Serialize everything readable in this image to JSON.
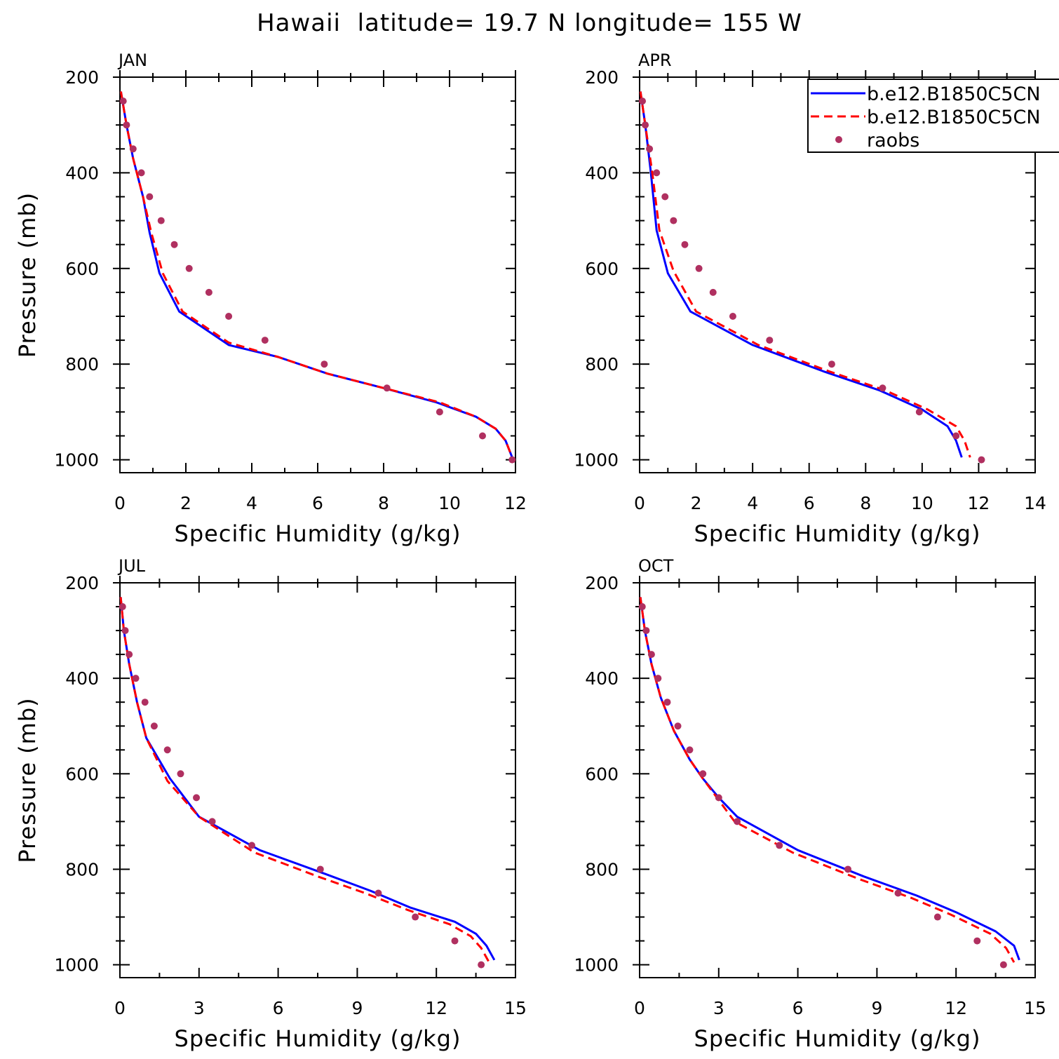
{
  "title": "Hawaii  latitude= 19.7 N longitude= 155 W",
  "colors": {
    "blue_series": "#0000ff",
    "red_series": "#ff0000",
    "raobs": "#b03060"
  },
  "legend": {
    "placement": "top-right of APR panel",
    "entries": [
      "b.e12.B1850C5CN",
      "b.e12.B1850C5CN",
      "raobs"
    ]
  },
  "chart_data": [
    {
      "panel": "JAN",
      "type": "line",
      "xlabel": "Specific Humidity (g/kg)",
      "ylabel": "Pressure (mb)",
      "xlim": [
        0,
        12
      ],
      "ylim": [
        1000,
        200
      ],
      "xticks": [
        0,
        2,
        4,
        6,
        8,
        10,
        12
      ],
      "yticks": [
        200,
        400,
        600,
        800,
        1000
      ],
      "series": [
        {
          "legend": "b.e12.B1850C5CN",
          "style": "solid",
          "x": [
            0.03,
            0.2,
            0.4,
            0.7,
            0.9,
            1.2,
            1.8,
            3.3,
            4.8,
            6.3,
            8.0,
            9.6,
            10.8,
            11.4,
            11.7,
            11.9
          ],
          "y": [
            230,
            300,
            370,
            450,
            525,
            610,
            690,
            760,
            785,
            820,
            850,
            880,
            910,
            935,
            960,
            995
          ]
        },
        {
          "legend": "b.e12.B1850C5CN",
          "style": "dashed",
          "x": [
            0.03,
            0.2,
            0.4,
            0.7,
            0.95,
            1.3,
            1.9,
            3.3,
            4.8,
            6.3,
            8.0,
            9.7,
            10.8,
            11.4,
            11.7,
            11.9
          ],
          "y": [
            230,
            300,
            370,
            450,
            525,
            610,
            690,
            755,
            785,
            820,
            850,
            880,
            910,
            935,
            960,
            995
          ]
        },
        {
          "legend": "raobs",
          "style": "markers",
          "x": [
            0.1,
            0.2,
            0.4,
            0.65,
            0.9,
            1.25,
            1.65,
            2.1,
            2.7,
            3.3,
            4.4,
            6.2,
            8.1,
            9.7,
            11.0,
            11.9
          ],
          "y": [
            250,
            300,
            350,
            400,
            450,
            500,
            550,
            600,
            650,
            700,
            750,
            800,
            850,
            900,
            950,
            1000
          ]
        }
      ]
    },
    {
      "panel": "APR",
      "type": "line",
      "xlabel": "Specific Humidity (g/kg)",
      "ylabel": "",
      "xlim": [
        0,
        14
      ],
      "ylim": [
        1000,
        200
      ],
      "xticks": [
        0,
        2,
        4,
        6,
        8,
        10,
        12,
        14
      ],
      "yticks": [
        200,
        400,
        600,
        800,
        1000
      ],
      "series": [
        {
          "legend": "b.e12.B1850C5CN",
          "style": "solid",
          "x": [
            0.03,
            0.2,
            0.4,
            0.6,
            1.0,
            1.8,
            4.0,
            6.5,
            8.5,
            10.0,
            10.9,
            11.2,
            11.4
          ],
          "y": [
            230,
            300,
            400,
            520,
            610,
            690,
            760,
            815,
            855,
            895,
            930,
            960,
            995
          ]
        },
        {
          "legend": "b.e12.B1850C5CN",
          "style": "dashed",
          "x": [
            0.03,
            0.2,
            0.45,
            0.7,
            1.2,
            2.0,
            4.2,
            6.7,
            8.7,
            10.2,
            11.2,
            11.5,
            11.7
          ],
          "y": [
            230,
            300,
            400,
            520,
            605,
            690,
            760,
            815,
            855,
            895,
            930,
            960,
            995
          ]
        },
        {
          "legend": "raobs",
          "style": "markers",
          "x": [
            0.1,
            0.2,
            0.35,
            0.6,
            0.9,
            1.2,
            1.6,
            2.1,
            2.6,
            3.3,
            4.6,
            6.8,
            8.6,
            9.9,
            11.2,
            12.1
          ],
          "y": [
            250,
            300,
            350,
            400,
            450,
            500,
            550,
            600,
            650,
            700,
            750,
            800,
            850,
            900,
            950,
            1000
          ]
        }
      ]
    },
    {
      "panel": "JUL",
      "type": "line",
      "xlabel": "Specific Humidity (g/kg)",
      "ylabel": "Pressure (mb)",
      "xlim": [
        0,
        15
      ],
      "ylim": [
        1000,
        200
      ],
      "xticks": [
        0,
        3,
        6,
        9,
        12,
        15
      ],
      "yticks": [
        200,
        400,
        600,
        800,
        1000
      ],
      "series": [
        {
          "legend": "b.e12.B1850C5CN",
          "style": "solid",
          "x": [
            0.03,
            0.15,
            0.35,
            0.65,
            1.0,
            1.9,
            3.0,
            5.3,
            7.8,
            9.5,
            11.0,
            12.7,
            13.5,
            13.9,
            14.2
          ],
          "y": [
            230,
            300,
            370,
            450,
            525,
            610,
            690,
            760,
            810,
            845,
            880,
            910,
            935,
            960,
            990
          ]
        },
        {
          "legend": "b.e12.B1850C5CN",
          "style": "dashed",
          "x": [
            0.03,
            0.15,
            0.35,
            0.65,
            1.0,
            1.8,
            3.0,
            5.1,
            7.5,
            9.3,
            10.9,
            12.5,
            13.3,
            13.7,
            14.0
          ],
          "y": [
            230,
            300,
            370,
            450,
            525,
            615,
            690,
            765,
            815,
            850,
            885,
            915,
            940,
            965,
            995
          ]
        },
        {
          "legend": "raobs",
          "style": "markers",
          "x": [
            0.1,
            0.2,
            0.35,
            0.6,
            0.95,
            1.3,
            1.8,
            2.3,
            2.9,
            3.5,
            5.0,
            7.6,
            9.8,
            11.2,
            12.7,
            13.7
          ],
          "y": [
            250,
            300,
            350,
            400,
            450,
            500,
            550,
            600,
            650,
            700,
            750,
            800,
            850,
            900,
            950,
            1000
          ]
        }
      ]
    },
    {
      "panel": "OCT",
      "type": "line",
      "xlabel": "Specific Humidity (g/kg)",
      "ylabel": "",
      "xlim": [
        0,
        15
      ],
      "ylim": [
        1000,
        200
      ],
      "xticks": [
        0,
        3,
        6,
        9,
        12,
        15
      ],
      "yticks": [
        200,
        400,
        600,
        800,
        1000
      ],
      "series": [
        {
          "legend": "b.e12.B1850C5CN",
          "style": "solid",
          "x": [
            0.03,
            0.2,
            0.45,
            0.8,
            1.3,
            1.9,
            2.4,
            3.0,
            3.7,
            6.0,
            8.5,
            10.5,
            12.0,
            13.5,
            14.2,
            14.4
          ],
          "y": [
            230,
            300,
            370,
            440,
            510,
            570,
            610,
            650,
            690,
            760,
            815,
            855,
            890,
            930,
            960,
            990
          ]
        },
        {
          "legend": "b.e12.B1850C5CN",
          "style": "dashed",
          "x": [
            0.03,
            0.2,
            0.45,
            0.8,
            1.3,
            1.9,
            2.4,
            3.0,
            3.6,
            5.8,
            8.3,
            10.3,
            11.8,
            13.3,
            13.9,
            14.2
          ],
          "y": [
            230,
            300,
            370,
            440,
            510,
            570,
            610,
            655,
            700,
            765,
            820,
            860,
            895,
            935,
            965,
            995
          ]
        },
        {
          "legend": "raobs",
          "style": "markers",
          "x": [
            0.1,
            0.25,
            0.45,
            0.7,
            1.05,
            1.45,
            1.9,
            2.4,
            3.0,
            3.7,
            5.3,
            7.9,
            9.8,
            11.3,
            12.8,
            13.8
          ],
          "y": [
            250,
            300,
            350,
            400,
            450,
            500,
            550,
            600,
            650,
            700,
            750,
            800,
            850,
            900,
            950,
            1000
          ]
        }
      ]
    }
  ]
}
